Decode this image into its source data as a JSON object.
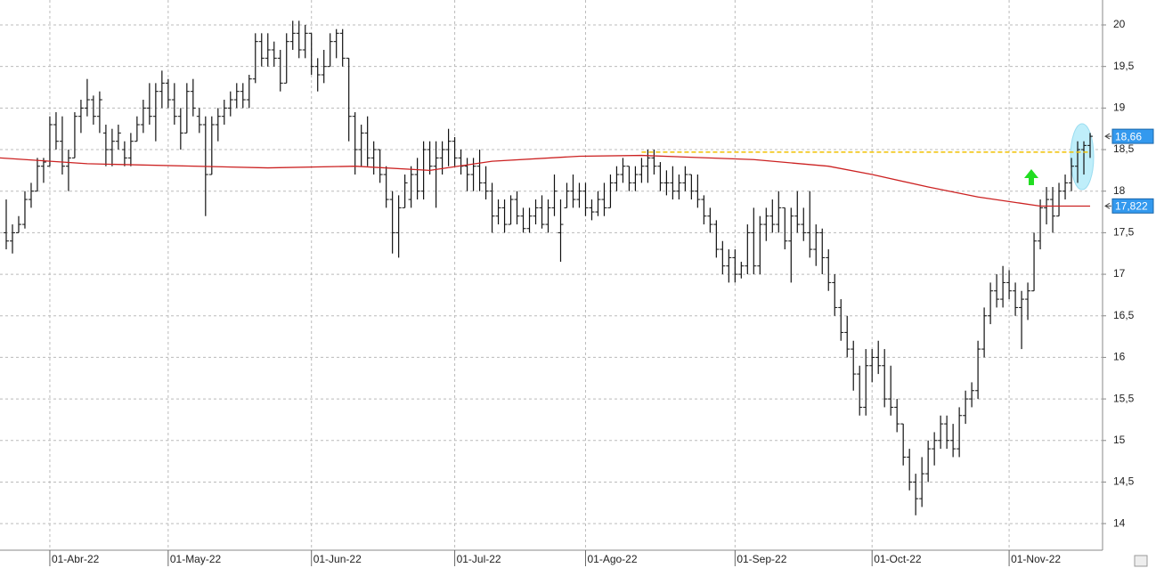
{
  "chart_data": {
    "type": "ohlc",
    "open": [
      17.5,
      17.4,
      17.5,
      17.6,
      17.9,
      18.0,
      18.3,
      18.3,
      18.8,
      18.6,
      18.3,
      18.4,
      18.9,
      19.0,
      19.1,
      18.9,
      18.7,
      18.5,
      18.6,
      18.5,
      18.4,
      18.6,
      18.8,
      19.0,
      18.9,
      19.2,
      19.3,
      19.1,
      18.9,
      18.7,
      19.2,
      18.9,
      18.8,
      18.2,
      18.8,
      18.9,
      19.0,
      19.1,
      19.2,
      19.1,
      19.35,
      19.8,
      19.6,
      19.7,
      19.6,
      19.3,
      19.8,
      19.9,
      19.7,
      19.9,
      19.5,
      19.4,
      19.5,
      19.8,
      19.9,
      19.6,
      18.9,
      18.5,
      18.7,
      18.4,
      18.5,
      18.2,
      17.9,
      17.5,
      17.8,
      17.9,
      18.2,
      18.0,
      18.5,
      18.3,
      18.4,
      18.5,
      18.6,
      18.4,
      18.3,
      18.2,
      18.3,
      18.1,
      18.0,
      17.7,
      17.8,
      17.6,
      17.9,
      17.7,
      17.55,
      17.7,
      17.8,
      17.6,
      17.8,
      17.5,
      17.8,
      18.0,
      17.9,
      18.0,
      17.8,
      17.75,
      17.9,
      17.8,
      18.1,
      18.2,
      18.3,
      18.1,
      18.2,
      18.3,
      18.4,
      18.3,
      18.1,
      18.1,
      18.0,
      18.1,
      18.2,
      18.0,
      17.9,
      17.7,
      17.6,
      17.3,
      17.1,
      17.2,
      17.0,
      17.1,
      17.5,
      17.1,
      17.6,
      17.7,
      17.6,
      17.8,
      17.4,
      17.7,
      17.6,
      17.5,
      17.3,
      17.5,
      17.2,
      16.9,
      16.6,
      16.3,
      16.1,
      15.8,
      15.4,
      15.9,
      16.0,
      15.9,
      15.5,
      15.4,
      15.2,
      14.8,
      14.5,
      14.3,
      14.6,
      14.9,
      15.0,
      15.2,
      15.0,
      14.9,
      15.3,
      15.5,
      15.6,
      16.1,
      16.5,
      16.8,
      16.7,
      16.9,
      16.8,
      16.6,
      16.7,
      16.8,
      17.4,
      17.8,
      17.9,
      17.7,
      18.0,
      18.1,
      18.3,
      18.5,
      18.55
    ],
    "high": [
      17.9,
      17.6,
      17.7,
      18.0,
      18.1,
      18.4,
      18.4,
      18.9,
      18.95,
      18.9,
      18.5,
      18.95,
      19.1,
      19.35,
      19.15,
      19.2,
      18.8,
      18.75,
      18.8,
      18.6,
      18.7,
      18.9,
      19.1,
      19.3,
      19.3,
      19.45,
      19.35,
      19.3,
      19.0,
      19.3,
      19.35,
      19.0,
      18.9,
      18.9,
      19.0,
      19.1,
      19.2,
      19.3,
      19.3,
      19.4,
      19.9,
      19.9,
      19.9,
      19.8,
      19.7,
      19.9,
      20.05,
      20.05,
      20.0,
      19.9,
      19.6,
      19.7,
      19.9,
      19.95,
      19.95,
      19.6,
      18.95,
      18.8,
      18.9,
      18.6,
      18.5,
      18.3,
      18.0,
      17.95,
      18.2,
      18.3,
      18.4,
      18.6,
      18.6,
      18.6,
      18.6,
      18.75,
      18.65,
      18.5,
      18.4,
      18.4,
      18.5,
      18.3,
      18.1,
      17.9,
      17.9,
      17.95,
      18.0,
      17.8,
      17.8,
      17.9,
      17.95,
      17.9,
      18.2,
      17.9,
      18.1,
      18.2,
      18.1,
      18.1,
      17.9,
      18.0,
      18.1,
      18.2,
      18.3,
      18.4,
      18.3,
      18.3,
      18.4,
      18.5,
      18.5,
      18.35,
      18.25,
      18.3,
      18.2,
      18.3,
      18.2,
      18.2,
      17.95,
      17.8,
      17.65,
      17.4,
      17.3,
      17.3,
      17.15,
      17.6,
      17.8,
      17.7,
      17.8,
      17.9,
      18.0,
      17.8,
      17.8,
      18.0,
      17.8,
      18.0,
      17.6,
      17.55,
      17.3,
      17.0,
      16.7,
      16.5,
      16.2,
      15.9,
      16.1,
      16.1,
      16.2,
      16.1,
      15.9,
      15.5,
      15.2,
      14.9,
      14.6,
      14.8,
      15.0,
      15.1,
      15.3,
      15.3,
      15.2,
      15.4,
      15.6,
      15.7,
      16.2,
      16.6,
      16.9,
      17.0,
      17.1,
      17.05,
      16.9,
      16.8,
      16.9,
      17.5,
      17.9,
      18.05,
      18.05,
      18.1,
      18.2,
      18.4,
      18.6,
      18.6,
      18.7
    ],
    "low": [
      17.3,
      17.25,
      17.5,
      17.55,
      17.8,
      18.0,
      18.1,
      18.3,
      18.5,
      18.2,
      18.0,
      18.4,
      18.7,
      18.9,
      18.8,
      18.7,
      18.3,
      18.3,
      18.5,
      18.3,
      18.3,
      18.6,
      18.7,
      18.8,
      18.6,
      19.0,
      19.0,
      18.8,
      18.5,
      18.7,
      18.9,
      18.7,
      17.7,
      18.2,
      18.6,
      18.8,
      18.9,
      19.0,
      19.0,
      19.0,
      19.3,
      19.5,
      19.5,
      19.5,
      19.2,
      19.3,
      19.7,
      19.6,
      19.6,
      19.4,
      19.2,
      19.3,
      19.5,
      19.6,
      19.5,
      18.6,
      18.2,
      18.3,
      18.3,
      18.2,
      18.1,
      17.8,
      17.25,
      17.2,
      17.8,
      17.8,
      17.9,
      17.9,
      18.2,
      17.8,
      18.2,
      18.3,
      18.3,
      18.2,
      18.0,
      18.0,
      18.0,
      17.9,
      17.5,
      17.6,
      17.5,
      17.6,
      17.6,
      17.5,
      17.5,
      17.6,
      17.55,
      17.5,
      17.7,
      17.15,
      17.8,
      17.8,
      17.8,
      17.7,
      17.65,
      17.7,
      17.7,
      17.8,
      18.0,
      18.1,
      18.0,
      18.0,
      18.1,
      18.1,
      18.2,
      18.0,
      17.95,
      17.9,
      17.9,
      18.0,
      17.9,
      17.8,
      17.6,
      17.5,
      17.2,
      17.0,
      16.9,
      16.9,
      16.95,
      17.0,
      17.0,
      17.0,
      17.4,
      17.5,
      17.5,
      17.3,
      16.9,
      17.5,
      17.4,
      17.2,
      17.1,
      17.0,
      16.8,
      16.5,
      16.2,
      16.0,
      15.6,
      15.3,
      15.3,
      15.7,
      15.8,
      15.4,
      15.3,
      15.1,
      14.7,
      14.4,
      14.1,
      14.2,
      14.5,
      14.7,
      14.9,
      14.9,
      14.8,
      14.8,
      15.2,
      15.4,
      15.5,
      16.0,
      16.4,
      16.6,
      16.6,
      16.7,
      16.5,
      16.1,
      16.45,
      16.8,
      17.3,
      17.6,
      17.5,
      17.7,
      17.9,
      18.0,
      18.1,
      18.2,
      18.4
    ],
    "close": [
      17.4,
      17.5,
      17.6,
      17.9,
      18.0,
      18.3,
      18.35,
      18.8,
      18.6,
      18.3,
      18.4,
      18.9,
      19.0,
      19.1,
      18.9,
      19.1,
      18.5,
      18.6,
      18.7,
      18.4,
      18.6,
      18.8,
      19.0,
      18.9,
      19.2,
      19.3,
      19.1,
      18.9,
      18.7,
      19.2,
      19.0,
      18.8,
      18.2,
      18.8,
      18.9,
      19.0,
      19.1,
      19.2,
      19.1,
      19.35,
      19.8,
      19.6,
      19.7,
      19.6,
      19.3,
      19.8,
      19.9,
      19.7,
      19.9,
      19.5,
      19.4,
      19.5,
      19.8,
      19.9,
      19.6,
      18.9,
      18.5,
      18.7,
      18.4,
      18.5,
      18.2,
      17.9,
      17.5,
      17.8,
      18.1,
      18.2,
      18.0,
      18.5,
      18.3,
      18.4,
      18.5,
      18.6,
      18.4,
      18.3,
      18.2,
      18.3,
      18.1,
      18.0,
      17.7,
      17.8,
      17.6,
      17.9,
      17.7,
      17.55,
      17.7,
      17.8,
      17.6,
      17.8,
      18.0,
      17.6,
      18.0,
      17.9,
      18.0,
      17.8,
      17.75,
      17.9,
      17.8,
      18.1,
      18.2,
      18.3,
      18.1,
      18.2,
      18.3,
      18.4,
      18.3,
      18.1,
      18.1,
      18.0,
      18.1,
      18.2,
      18.0,
      17.9,
      17.7,
      17.6,
      17.3,
      17.1,
      17.2,
      17.0,
      17.1,
      17.5,
      17.1,
      17.6,
      17.7,
      17.6,
      17.8,
      17.4,
      17.7,
      17.6,
      17.5,
      17.3,
      17.5,
      17.2,
      16.9,
      16.6,
      16.3,
      16.1,
      15.8,
      15.4,
      15.9,
      16.0,
      15.9,
      15.5,
      15.4,
      15.2,
      14.8,
      14.5,
      14.3,
      14.6,
      14.9,
      15.0,
      15.2,
      15.0,
      14.9,
      15.3,
      15.5,
      15.6,
      16.1,
      16.5,
      16.8,
      16.7,
      16.9,
      16.8,
      16.6,
      16.7,
      16.8,
      17.4,
      17.8,
      17.9,
      17.7,
      18.0,
      18.1,
      18.3,
      18.5,
      18.55,
      18.66
    ],
    "xlim": [
      -1,
      176
    ],
    "xticks": [
      {
        "value": 7,
        "label": "01-Abr-22"
      },
      {
        "value": 26,
        "label": "01-May-22"
      },
      {
        "value": 49,
        "label": "01-Jun-22"
      },
      {
        "value": 72,
        "label": "01-Jul-22"
      },
      {
        "value": 93,
        "label": "01-Ago-22"
      },
      {
        "value": 117,
        "label": "01-Sep-22"
      },
      {
        "value": 139,
        "label": "01-Oct-22"
      },
      {
        "value": 161,
        "label": "01-Nov-22"
      }
    ],
    "ylim": [
      13.68,
      20.3
    ],
    "yticks": [
      14,
      {
        "value": 14.5,
        "label": "14,5"
      },
      15,
      {
        "value": 15.5,
        "label": "15,5"
      },
      16,
      {
        "value": 16.5,
        "label": "16,5"
      },
      17,
      {
        "value": 17.5,
        "label": "17,5"
      },
      18,
      {
        "value": 18.5,
        "label": "18,5"
      },
      19,
      {
        "value": 19.5,
        "label": "19,5"
      },
      20
    ],
    "grid": true,
    "bar_color": "#111111",
    "moving_average": {
      "color": "#cc2222",
      "x": [
        -1,
        13,
        42,
        56,
        68,
        78,
        92,
        102,
        120,
        132,
        139,
        148,
        156,
        166,
        174
      ],
      "values": [
        18.4,
        18.33,
        18.28,
        18.3,
        18.25,
        18.36,
        18.42,
        18.43,
        18.38,
        18.3,
        18.2,
        18.05,
        17.93,
        17.82,
        17.82
      ]
    },
    "resistance": {
      "color": "#f0c000",
      "value": 18.47,
      "x": [
        102,
        174
      ]
    },
    "price_labels": [
      {
        "value": 18.66,
        "label": "18,66"
      },
      {
        "value": 17.822,
        "label": "17,822"
      }
    ],
    "price_label_color": "#3399ee"
  }
}
